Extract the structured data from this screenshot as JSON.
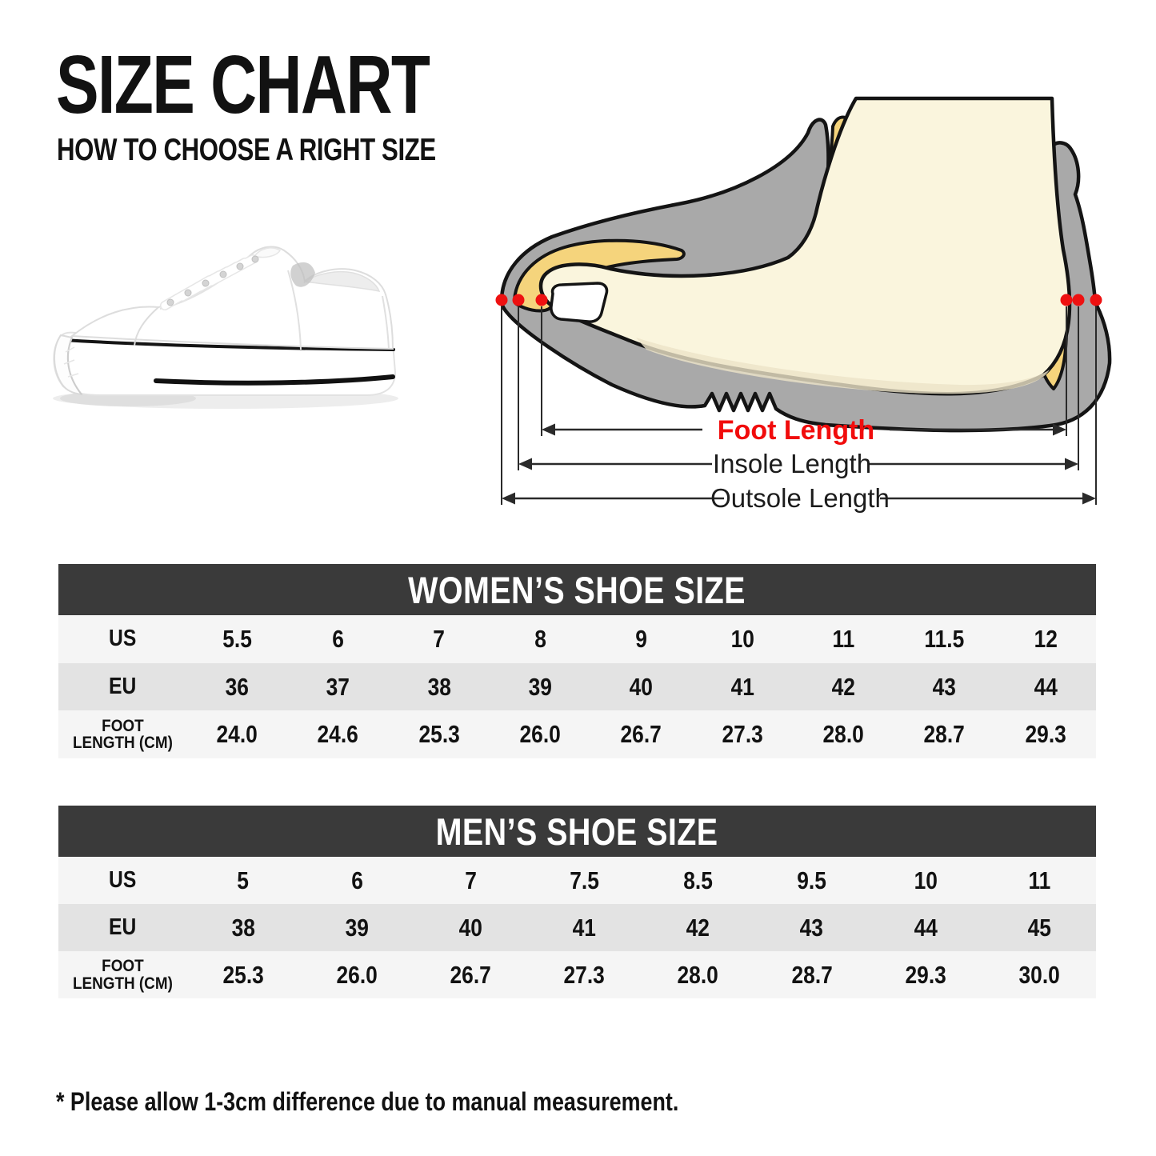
{
  "page": {
    "title": "SIZE CHART",
    "subtitle": "HOW TO CHOOSE A RIGHT SIZE",
    "note": "* Please allow 1-3cm difference due to manual measurement."
  },
  "diagram": {
    "labels": {
      "foot_length": "Foot Length",
      "insole_length": "Insole Length",
      "outsole_length": "Outsole Length"
    },
    "colors": {
      "shoe_gray": "#a9a9a9",
      "lining_yellow": "#f5d47c",
      "skin_cream": "#faf5dd",
      "marker_red": "#ee1111",
      "foot_length_label_red": "#f10c0c",
      "outline_black": "#141414"
    }
  },
  "table_style": {
    "header_bar_color": "#3a3a3a",
    "header_text_color": "#ffffff",
    "row_light_color": "#f5f5f5",
    "row_dark_color": "#e3e3e3"
  },
  "tables": [
    {
      "id": "womens",
      "title": "WOMEN’S SHOE SIZE",
      "rows": [
        {
          "label": "US",
          "values": [
            "5.5",
            "6",
            "7",
            "8",
            "9",
            "10",
            "11",
            "11.5",
            "12"
          ]
        },
        {
          "label": "EU",
          "values": [
            "36",
            "37",
            "38",
            "39",
            "40",
            "41",
            "42",
            "43",
            "44"
          ]
        },
        {
          "label": "FOOT\nLENGTH (CM)",
          "values": [
            "24.0",
            "24.6",
            "25.3",
            "26.0",
            "26.7",
            "27.3",
            "28.0",
            "28.7",
            "29.3"
          ]
        }
      ]
    },
    {
      "id": "mens",
      "title": "MEN’S SHOE SIZE",
      "rows": [
        {
          "label": "US",
          "values": [
            "5",
            "6",
            "7",
            "7.5",
            "8.5",
            "9.5",
            "10",
            "11"
          ]
        },
        {
          "label": "EU",
          "values": [
            "38",
            "39",
            "40",
            "41",
            "42",
            "43",
            "44",
            "45"
          ]
        },
        {
          "label": "FOOT\nLENGTH (CM)",
          "values": [
            "25.3",
            "26.0",
            "26.7",
            "27.3",
            "28.0",
            "28.7",
            "29.3",
            "30.0"
          ]
        }
      ]
    }
  ]
}
